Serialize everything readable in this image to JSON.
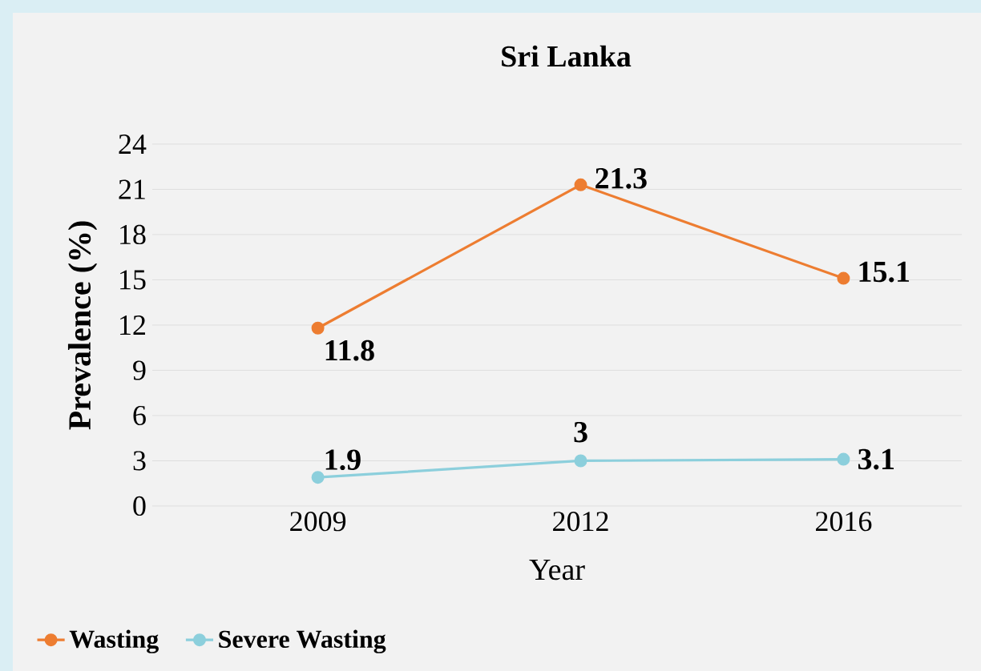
{
  "chart_data": {
    "type": "line",
    "title": "Sri Lanka",
    "xlabel": "Year",
    "ylabel": "Prevalence (%)",
    "categories": [
      "2009",
      "2012",
      "2016"
    ],
    "series": [
      {
        "name": "Wasting",
        "color": "#ed7d31",
        "values": [
          11.8,
          21.3,
          15.1
        ]
      },
      {
        "name": "Severe Wasting",
        "color": "#8ccfdc",
        "values": [
          1.9,
          3,
          3.1
        ]
      }
    ],
    "ylim": [
      0,
      24
    ],
    "yticks": [
      0,
      3,
      6,
      9,
      12,
      15,
      18,
      21,
      24
    ],
    "grid": "y",
    "legend": "bottom left",
    "marker": "circle",
    "line_style": "solid",
    "data_labels": true
  }
}
